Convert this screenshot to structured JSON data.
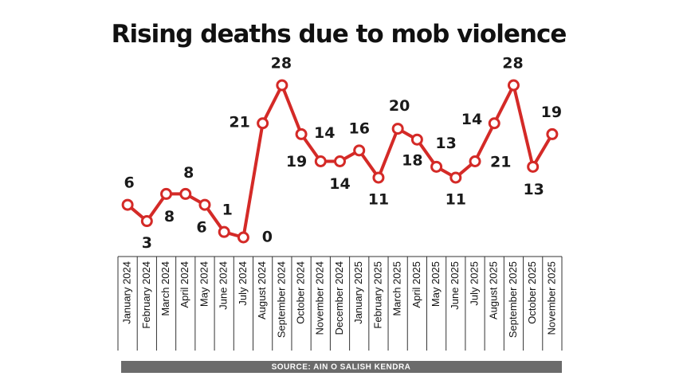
{
  "chart_data": {
    "type": "line",
    "title": "Rising deaths due to mob violence",
    "categories": [
      "January 2024",
      "February 2024",
      "March 2024",
      "April 2024",
      "May 2024",
      "June 2024",
      "July 2024",
      "August 2024",
      "September 2024",
      "October 2024",
      "November 2024",
      "December 2024",
      "January 2025",
      "February 2025",
      "March 2025",
      "April 2025",
      "May 2025",
      "June 2025",
      "July 2025",
      "August 2025",
      "September 2025",
      "October 2025",
      "November 2025"
    ],
    "values": [
      6,
      3,
      8,
      8,
      6,
      1,
      0,
      21,
      28,
      19,
      14,
      14,
      16,
      11,
      20,
      18,
      13,
      11,
      14,
      21,
      28,
      13,
      19
    ],
    "color": "#d42a27",
    "ylim": [
      0,
      28
    ],
    "source": "SOURCE: AIN O SALISH KENDRA"
  }
}
